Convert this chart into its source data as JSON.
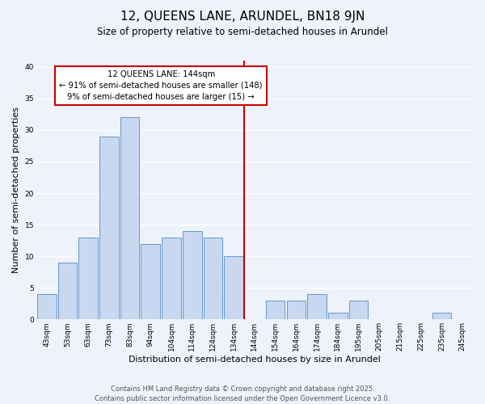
{
  "title": "12, QUEENS LANE, ARUNDEL, BN18 9JN",
  "subtitle": "Size of property relative to semi-detached houses in Arundel",
  "xlabel": "Distribution of semi-detached houses by size in Arundel",
  "ylabel": "Number of semi-detached properties",
  "bar_labels": [
    "43sqm",
    "53sqm",
    "63sqm",
    "73sqm",
    "83sqm",
    "94sqm",
    "104sqm",
    "114sqm",
    "124sqm",
    "134sqm",
    "144sqm",
    "154sqm",
    "164sqm",
    "174sqm",
    "184sqm",
    "195sqm",
    "205sqm",
    "215sqm",
    "225sqm",
    "235sqm",
    "245sqm"
  ],
  "bar_values": [
    4,
    9,
    13,
    29,
    32,
    12,
    13,
    14,
    13,
    10,
    0,
    3,
    3,
    4,
    1,
    3,
    0,
    0,
    0,
    1,
    0
  ],
  "bar_color": "#c8d8f0",
  "bar_edge_color": "#6699cc",
  "vline_color": "#cc0000",
  "annotation_title": "12 QUEENS LANE: 144sqm",
  "annotation_line1": "← 91% of semi-detached houses are smaller (148)",
  "annotation_line2": "9% of semi-detached houses are larger (15) →",
  "annotation_box_color": "#ffffff",
  "annotation_box_edge": "#cc0000",
  "ylim": [
    0,
    41
  ],
  "yticks": [
    0,
    5,
    10,
    15,
    20,
    25,
    30,
    35,
    40
  ],
  "bg_color": "#eef2fb",
  "grid_color": "#ffffff",
  "footer1": "Contains HM Land Registry data © Crown copyright and database right 2025.",
  "footer2": "Contains public sector information licensed under the Open Government Licence v3.0.",
  "title_fontsize": 11,
  "subtitle_fontsize": 8.5,
  "axis_label_fontsize": 8,
  "tick_fontsize": 6.5,
  "annotation_fontsize": 7.2,
  "footer_fontsize": 6
}
